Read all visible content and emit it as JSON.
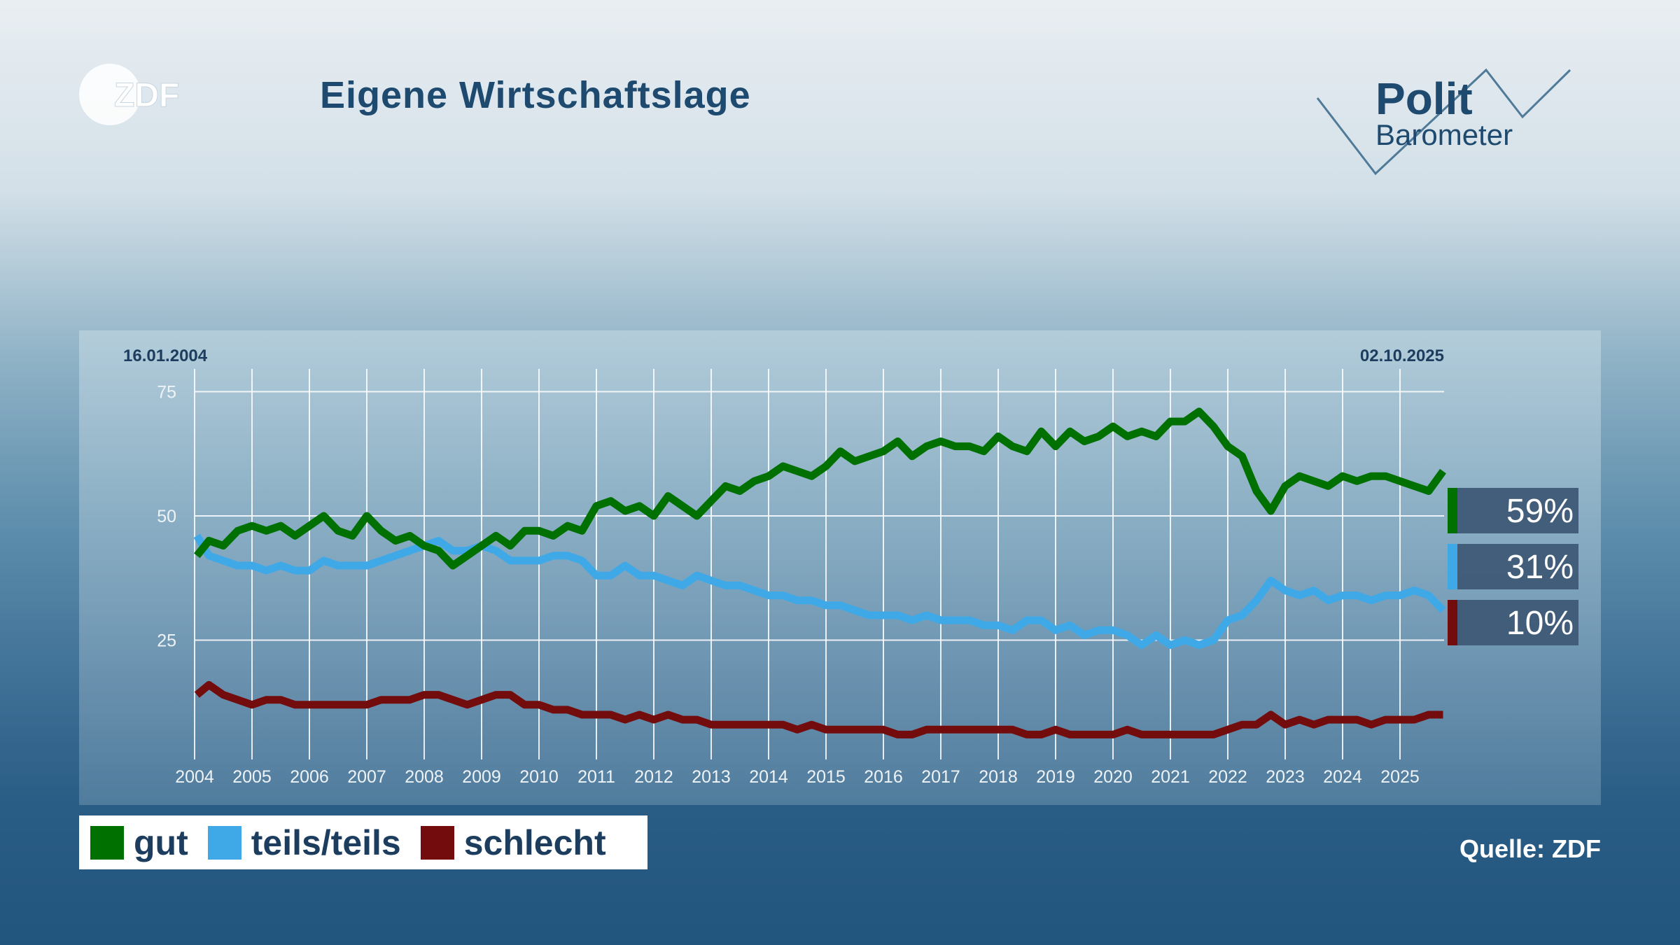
{
  "header": {
    "title": "Eigene Wirtschaftslage",
    "logo_left": "ZDF",
    "logo_right_top": "Polit",
    "logo_right_bottom": "Barometer"
  },
  "footer": {
    "source": "Quelle: ZDF"
  },
  "chart_data": {
    "type": "line",
    "title": "Eigene Wirtschaftslage",
    "date_start": "16.01.2004",
    "date_end": "02.10.2025",
    "xlim": [
      2004,
      2025.75
    ],
    "ylim": [
      0,
      75
    ],
    "yticks": [
      25,
      50,
      75
    ],
    "xticks": [
      "2004",
      "2005",
      "2006",
      "2007",
      "2008",
      "2009",
      "2010",
      "2011",
      "2012",
      "2013",
      "2014",
      "2015",
      "2016",
      "2017",
      "2018",
      "2019",
      "2020",
      "2021",
      "2022",
      "2023",
      "2024",
      "2025"
    ],
    "grid": true,
    "legend_position": "bottom-left",
    "x": [
      2004.04,
      2004.25,
      2004.5,
      2004.75,
      2005,
      2005.25,
      2005.5,
      2005.75,
      2006,
      2006.25,
      2006.5,
      2006.75,
      2007,
      2007.25,
      2007.5,
      2007.75,
      2008,
      2008.25,
      2008.5,
      2008.75,
      2009,
      2009.25,
      2009.5,
      2009.75,
      2010,
      2010.25,
      2010.5,
      2010.75,
      2011,
      2011.25,
      2011.5,
      2011.75,
      2012,
      2012.25,
      2012.5,
      2012.75,
      2013,
      2013.25,
      2013.5,
      2013.75,
      2014,
      2014.25,
      2014.5,
      2014.75,
      2015,
      2015.25,
      2015.5,
      2015.75,
      2016,
      2016.25,
      2016.5,
      2016.75,
      2017,
      2017.25,
      2017.5,
      2017.75,
      2018,
      2018.25,
      2018.5,
      2018.75,
      2019,
      2019.25,
      2019.5,
      2019.75,
      2020,
      2020.25,
      2020.5,
      2020.75,
      2021,
      2021.25,
      2021.5,
      2021.75,
      2022,
      2022.25,
      2022.5,
      2022.75,
      2023,
      2023.25,
      2023.5,
      2023.75,
      2024,
      2024.25,
      2024.5,
      2024.75,
      2025,
      2025.25,
      2025.5,
      2025.75
    ],
    "series": [
      {
        "name": "gut",
        "color": "#007000",
        "latest": "59%",
        "values": [
          42,
          45,
          44,
          47,
          48,
          47,
          48,
          46,
          48,
          50,
          47,
          46,
          50,
          47,
          45,
          46,
          44,
          43,
          40,
          42,
          44,
          46,
          44,
          47,
          47,
          46,
          48,
          47,
          52,
          53,
          51,
          52,
          50,
          54,
          52,
          50,
          53,
          56,
          55,
          57,
          58,
          60,
          59,
          58,
          60,
          63,
          61,
          62,
          63,
          65,
          62,
          64,
          65,
          64,
          64,
          63,
          66,
          64,
          63,
          67,
          64,
          67,
          65,
          66,
          68,
          66,
          67,
          66,
          69,
          69,
          71,
          68,
          64,
          62,
          55,
          51,
          56,
          58,
          57,
          56,
          58,
          57,
          58,
          58,
          57,
          56,
          55,
          59
        ]
      },
      {
        "name": "teils/teils",
        "color": "#3fa9e8",
        "latest": "31%",
        "values": [
          46,
          42,
          41,
          40,
          40,
          39,
          40,
          39,
          39,
          41,
          40,
          40,
          40,
          41,
          42,
          43,
          44,
          45,
          43,
          43,
          44,
          43,
          41,
          41,
          41,
          42,
          42,
          41,
          38,
          38,
          40,
          38,
          38,
          37,
          36,
          38,
          37,
          36,
          36,
          35,
          34,
          34,
          33,
          33,
          32,
          32,
          31,
          30,
          30,
          30,
          29,
          30,
          29,
          29,
          29,
          28,
          28,
          27,
          29,
          29,
          27,
          28,
          26,
          27,
          27,
          26,
          24,
          26,
          24,
          25,
          24,
          25,
          29,
          30,
          33,
          37,
          35,
          34,
          35,
          33,
          34,
          34,
          33,
          34,
          34,
          35,
          34,
          31
        ]
      },
      {
        "name": "schlecht",
        "color": "#730d0d",
        "latest": "10%",
        "values": [
          14,
          16,
          14,
          13,
          12,
          13,
          13,
          12,
          12,
          12,
          12,
          12,
          12,
          13,
          13,
          13,
          14,
          14,
          13,
          12,
          13,
          14,
          14,
          12,
          12,
          11,
          11,
          10,
          10,
          10,
          9,
          10,
          9,
          10,
          9,
          9,
          8,
          8,
          8,
          8,
          8,
          8,
          7,
          8,
          7,
          7,
          7,
          7,
          7,
          6,
          6,
          7,
          7,
          7,
          7,
          7,
          7,
          7,
          6,
          6,
          7,
          6,
          6,
          6,
          6,
          7,
          6,
          6,
          6,
          6,
          6,
          6,
          7,
          8,
          8,
          10,
          8,
          9,
          8,
          9,
          9,
          9,
          8,
          9,
          9,
          9,
          10,
          10
        ]
      }
    ]
  }
}
